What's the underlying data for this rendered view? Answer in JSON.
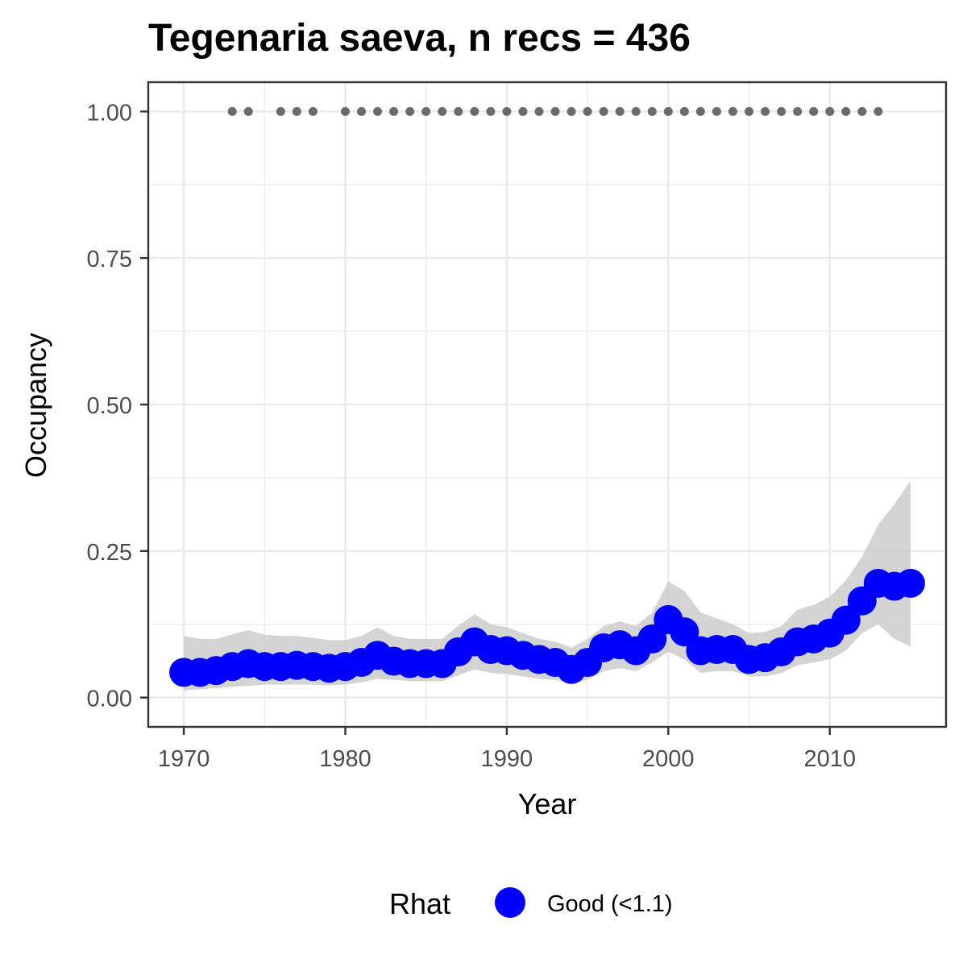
{
  "chart_data": {
    "type": "line",
    "title": "Tegenaria saeva, n recs = 436",
    "xlabel": "Year",
    "ylabel": "Occupancy",
    "xlim": [
      1967.8,
      2017.2
    ],
    "ylim": [
      -0.05,
      1.05
    ],
    "x_ticks": [
      1970,
      1980,
      1990,
      2000,
      2010
    ],
    "x_tick_labels": [
      "1970",
      "1980",
      "1990",
      "2000",
      "2010"
    ],
    "y_ticks": [
      0,
      0.25,
      0.5,
      0.75,
      1.0
    ],
    "y_tick_labels": [
      "0.00",
      "0.25",
      "0.50",
      "0.75",
      "1.00"
    ],
    "grid": true,
    "legend_position": "bottom",
    "legend": {
      "title": "Rhat",
      "entries": [
        {
          "label": "Good (<1.1)",
          "color": "#0000ff"
        }
      ]
    },
    "colors": {
      "series": "#0000ff",
      "ribbon": "#cccccc",
      "record_dots": "#6b6b6b"
    },
    "series": [
      {
        "x": [
          1970,
          1971,
          1972,
          1973,
          1974,
          1975,
          1976,
          1977,
          1978,
          1979,
          1980,
          1981,
          1982,
          1983,
          1984,
          1985,
          1986,
          1987,
          1988,
          1989,
          1990,
          1991,
          1992,
          1993,
          1994,
          1995,
          1996,
          1997,
          1998,
          1999,
          2000,
          2001,
          2002,
          2003,
          2004,
          2005,
          2006,
          2007,
          2008,
          2009,
          2010,
          2011,
          2012,
          2013,
          2014,
          2015
        ],
        "values": [
          0.043,
          0.043,
          0.046,
          0.053,
          0.058,
          0.053,
          0.053,
          0.055,
          0.053,
          0.05,
          0.053,
          0.06,
          0.072,
          0.062,
          0.058,
          0.058,
          0.058,
          0.078,
          0.095,
          0.082,
          0.08,
          0.072,
          0.065,
          0.06,
          0.048,
          0.06,
          0.085,
          0.09,
          0.08,
          0.1,
          0.133,
          0.112,
          0.08,
          0.082,
          0.082,
          0.065,
          0.068,
          0.078,
          0.095,
          0.1,
          0.11,
          0.132,
          0.165,
          0.195,
          0.19,
          0.195
        ],
        "lower": [
          0.012,
          0.014,
          0.016,
          0.018,
          0.02,
          0.022,
          0.022,
          0.022,
          0.022,
          0.021,
          0.022,
          0.026,
          0.032,
          0.03,
          0.028,
          0.028,
          0.028,
          0.038,
          0.048,
          0.042,
          0.04,
          0.036,
          0.032,
          0.03,
          0.024,
          0.03,
          0.045,
          0.05,
          0.045,
          0.06,
          0.078,
          0.065,
          0.042,
          0.045,
          0.045,
          0.036,
          0.036,
          0.042,
          0.055,
          0.06,
          0.065,
          0.08,
          0.11,
          0.125,
          0.1,
          0.087
        ],
        "upper": [
          0.105,
          0.1,
          0.1,
          0.108,
          0.115,
          0.107,
          0.105,
          0.105,
          0.102,
          0.098,
          0.098,
          0.105,
          0.12,
          0.105,
          0.1,
          0.1,
          0.1,
          0.123,
          0.142,
          0.125,
          0.12,
          0.11,
          0.1,
          0.095,
          0.085,
          0.1,
          0.122,
          0.13,
          0.122,
          0.145,
          0.198,
          0.182,
          0.145,
          0.135,
          0.125,
          0.11,
          0.112,
          0.122,
          0.15,
          0.158,
          0.172,
          0.2,
          0.24,
          0.295,
          0.33,
          0.37
        ]
      }
    ],
    "records": {
      "x": [
        1973,
        1974,
        1976,
        1977,
        1978,
        1980,
        1981,
        1982,
        1983,
        1984,
        1985,
        1986,
        1987,
        1988,
        1989,
        1990,
        1991,
        1992,
        1993,
        1994,
        1995,
        1996,
        1997,
        1998,
        1999,
        2000,
        2001,
        2002,
        2003,
        2004,
        2005,
        2006,
        2007,
        2008,
        2009,
        2010,
        2011,
        2012,
        2013
      ],
      "y": 1.0
    }
  }
}
